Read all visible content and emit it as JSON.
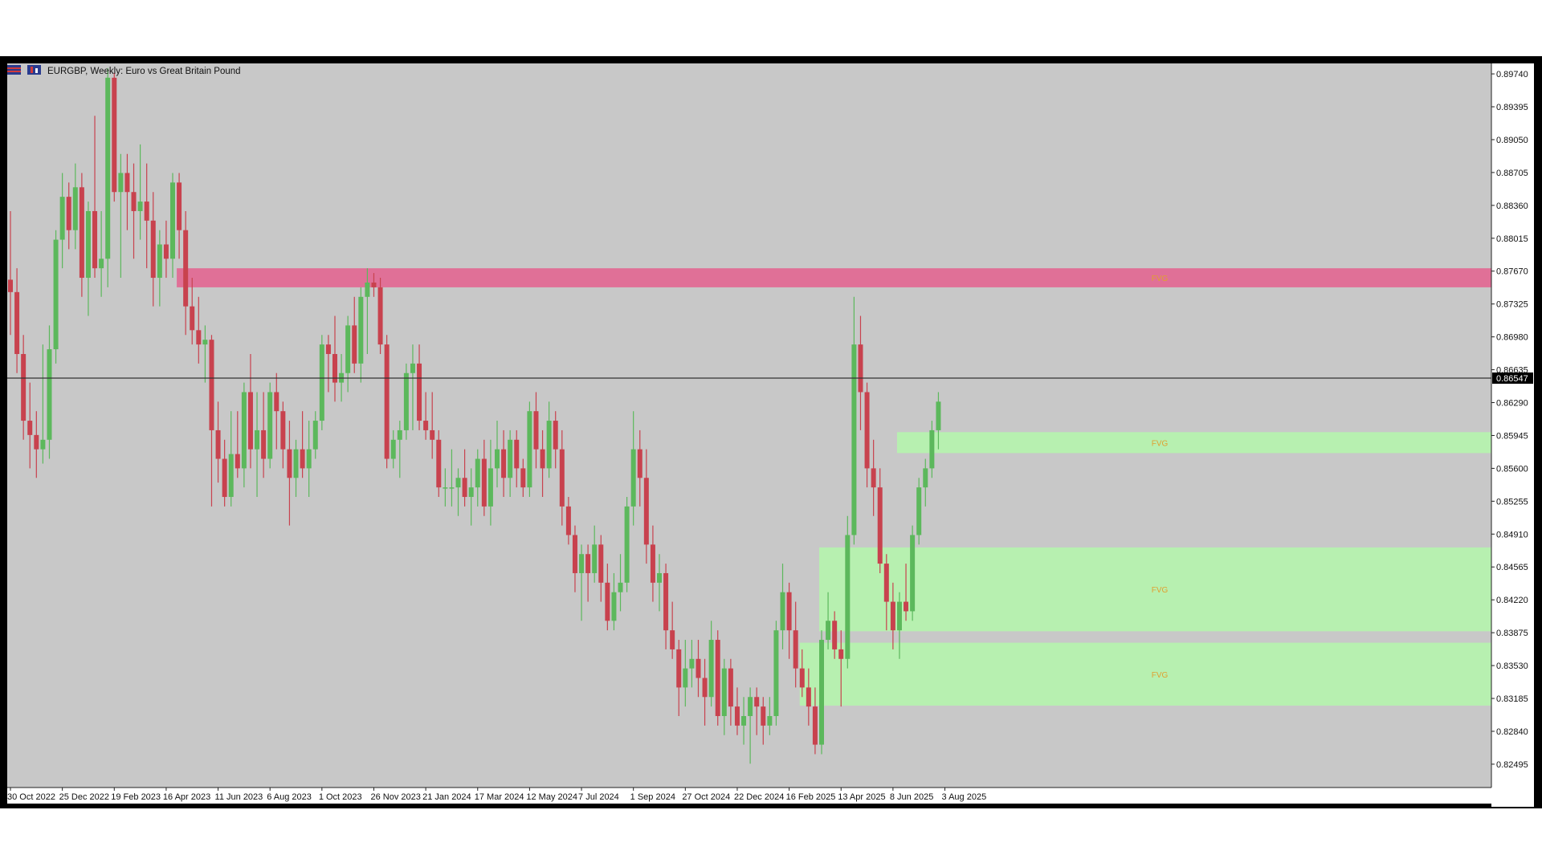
{
  "window": {
    "title": "EURGBP, Weekly:  Euro vs Great Britain Pound"
  },
  "colors": {
    "background": "#c8c8c8",
    "bull": "#5cb85c",
    "bear": "#c8424e",
    "supply_zone": "#e07097",
    "demand_zone": "#b7f0b0",
    "fvg_label": "#e0a030",
    "frame": "#000000"
  },
  "icons": [
    "flag-icon",
    "chart-type-icon"
  ],
  "chart_data": {
    "type": "candlestick",
    "symbol": "EURGBP",
    "timeframe": "Weekly",
    "description": "Euro vs Great Britain Pound",
    "ylim": [
      0.8225,
      0.8985
    ],
    "y_ticks": [
      "0.89740",
      "0.89395",
      "0.89050",
      "0.88705",
      "0.88360",
      "0.88015",
      "0.87670",
      "0.87325",
      "0.86980",
      "0.86635",
      "0.86290",
      "0.85945",
      "0.85600",
      "0.85255",
      "0.84910",
      "0.84565",
      "0.84220",
      "0.83875",
      "0.83530",
      "0.83185",
      "0.82840",
      "0.82495"
    ],
    "x_ticks": [
      "30 Oct 2022",
      "25 Dec 2022",
      "19 Feb 2023",
      "16 Apr 2023",
      "11 Jun 2023",
      "6 Aug 2023",
      "1 Oct 2023",
      "26 Nov 2023",
      "21 Jan 2024",
      "17 Mar 2024",
      "12 May 2024",
      "7 Jul 2024",
      "1 Sep 2024",
      "27 Oct 2024",
      "22 Dec 2024",
      "16 Feb 2025",
      "13 Apr 2025",
      "8 Jun 2025",
      "3 Aug 2025"
    ],
    "current_price": "0.86547",
    "current_price_value": 0.86547,
    "zones": [
      {
        "type": "supply",
        "label": "FVG",
        "top": 0.877,
        "bottom": 0.875,
        "start_index": 26
      },
      {
        "type": "demand",
        "label": "FVG",
        "top": 0.8598,
        "bottom": 0.8576,
        "start_index": 137
      },
      {
        "type": "demand",
        "label": "FVG",
        "top": 0.8477,
        "bottom": 0.8389,
        "start_index": 125
      },
      {
        "type": "demand",
        "label": "FVG",
        "top": 0.8377,
        "bottom": 0.8311,
        "start_index": 122
      }
    ],
    "candles": [
      [
        0.8758,
        0.883,
        0.87,
        0.8745
      ],
      [
        0.8745,
        0.877,
        0.866,
        0.868
      ],
      [
        0.868,
        0.87,
        0.859,
        0.861
      ],
      [
        0.861,
        0.865,
        0.856,
        0.8595
      ],
      [
        0.8595,
        0.862,
        0.855,
        0.858
      ],
      [
        0.858,
        0.869,
        0.8565,
        0.859
      ],
      [
        0.859,
        0.871,
        0.857,
        0.8685
      ],
      [
        0.8685,
        0.881,
        0.867,
        0.88
      ],
      [
        0.88,
        0.887,
        0.877,
        0.8845
      ],
      [
        0.8845,
        0.886,
        0.879,
        0.881
      ],
      [
        0.881,
        0.888,
        0.879,
        0.8855
      ],
      [
        0.8855,
        0.887,
        0.874,
        0.876
      ],
      [
        0.876,
        0.884,
        0.872,
        0.883
      ],
      [
        0.883,
        0.893,
        0.876,
        0.877
      ],
      [
        0.877,
        0.883,
        0.874,
        0.878
      ],
      [
        0.878,
        0.898,
        0.875,
        0.897
      ],
      [
        0.897,
        0.8975,
        0.884,
        0.885
      ],
      [
        0.885,
        0.889,
        0.876,
        0.887
      ],
      [
        0.887,
        0.889,
        0.881,
        0.885
      ],
      [
        0.885,
        0.888,
        0.878,
        0.883
      ],
      [
        0.883,
        0.89,
        0.88,
        0.884
      ],
      [
        0.884,
        0.888,
        0.877,
        0.882
      ],
      [
        0.882,
        0.885,
        0.873,
        0.876
      ],
      [
        0.876,
        0.881,
        0.873,
        0.8795
      ],
      [
        0.8795,
        0.882,
        0.876,
        0.878
      ],
      [
        0.878,
        0.887,
        0.876,
        0.886
      ],
      [
        0.886,
        0.887,
        0.878,
        0.881
      ],
      [
        0.881,
        0.883,
        0.87,
        0.873
      ],
      [
        0.873,
        0.876,
        0.869,
        0.8705
      ],
      [
        0.8705,
        0.874,
        0.867,
        0.869
      ],
      [
        0.869,
        0.871,
        0.865,
        0.8695
      ],
      [
        0.8695,
        0.87,
        0.852,
        0.86
      ],
      [
        0.86,
        0.863,
        0.8545,
        0.857
      ],
      [
        0.857,
        0.859,
        0.852,
        0.853
      ],
      [
        0.853,
        0.862,
        0.852,
        0.8575
      ],
      [
        0.8575,
        0.862,
        0.855,
        0.856
      ],
      [
        0.856,
        0.865,
        0.854,
        0.864
      ],
      [
        0.864,
        0.868,
        0.856,
        0.858
      ],
      [
        0.858,
        0.864,
        0.853,
        0.86
      ],
      [
        0.86,
        0.864,
        0.855,
        0.857
      ],
      [
        0.857,
        0.865,
        0.856,
        0.864
      ],
      [
        0.864,
        0.866,
        0.858,
        0.862
      ],
      [
        0.862,
        0.863,
        0.856,
        0.858
      ],
      [
        0.858,
        0.861,
        0.85,
        0.855
      ],
      [
        0.855,
        0.859,
        0.853,
        0.858
      ],
      [
        0.858,
        0.862,
        0.855,
        0.856
      ],
      [
        0.856,
        0.861,
        0.853,
        0.858
      ],
      [
        0.858,
        0.862,
        0.857,
        0.861
      ],
      [
        0.861,
        0.87,
        0.86,
        0.869
      ],
      [
        0.869,
        0.87,
        0.864,
        0.868
      ],
      [
        0.868,
        0.872,
        0.863,
        0.865
      ],
      [
        0.865,
        0.868,
        0.863,
        0.866
      ],
      [
        0.866,
        0.872,
        0.864,
        0.871
      ],
      [
        0.871,
        0.874,
        0.866,
        0.867
      ],
      [
        0.867,
        0.875,
        0.865,
        0.874
      ],
      [
        0.874,
        0.877,
        0.868,
        0.8755
      ],
      [
        0.8755,
        0.8765,
        0.874,
        0.875
      ],
      [
        0.875,
        0.876,
        0.868,
        0.869
      ],
      [
        0.869,
        0.87,
        0.856,
        0.857
      ],
      [
        0.857,
        0.86,
        0.856,
        0.859
      ],
      [
        0.859,
        0.861,
        0.855,
        0.86
      ],
      [
        0.86,
        0.867,
        0.859,
        0.866
      ],
      [
        0.866,
        0.869,
        0.86,
        0.867
      ],
      [
        0.867,
        0.869,
        0.86,
        0.861
      ],
      [
        0.861,
        0.864,
        0.859,
        0.86
      ],
      [
        0.86,
        0.864,
        0.857,
        0.859
      ],
      [
        0.859,
        0.86,
        0.853,
        0.854
      ],
      [
        0.854,
        0.856,
        0.852,
        0.854
      ],
      [
        0.854,
        0.858,
        0.852,
        0.854
      ],
      [
        0.854,
        0.856,
        0.851,
        0.855
      ],
      [
        0.855,
        0.858,
        0.852,
        0.853
      ],
      [
        0.853,
        0.856,
        0.85,
        0.854
      ],
      [
        0.854,
        0.858,
        0.852,
        0.857
      ],
      [
        0.857,
        0.859,
        0.851,
        0.852
      ],
      [
        0.852,
        0.859,
        0.85,
        0.856
      ],
      [
        0.856,
        0.861,
        0.854,
        0.858
      ],
      [
        0.858,
        0.86,
        0.853,
        0.855
      ],
      [
        0.855,
        0.86,
        0.853,
        0.859
      ],
      [
        0.859,
        0.86,
        0.854,
        0.856
      ],
      [
        0.856,
        0.857,
        0.853,
        0.854
      ],
      [
        0.854,
        0.863,
        0.853,
        0.862
      ],
      [
        0.862,
        0.864,
        0.856,
        0.858
      ],
      [
        0.858,
        0.86,
        0.853,
        0.856
      ],
      [
        0.856,
        0.863,
        0.855,
        0.861
      ],
      [
        0.861,
        0.862,
        0.856,
        0.858
      ],
      [
        0.858,
        0.86,
        0.85,
        0.852
      ],
      [
        0.852,
        0.853,
        0.848,
        0.849
      ],
      [
        0.849,
        0.85,
        0.843,
        0.845
      ],
      [
        0.845,
        0.848,
        0.84,
        0.847
      ],
      [
        0.847,
        0.848,
        0.842,
        0.845
      ],
      [
        0.845,
        0.85,
        0.844,
        0.848
      ],
      [
        0.848,
        0.849,
        0.842,
        0.844
      ],
      [
        0.844,
        0.846,
        0.839,
        0.84
      ],
      [
        0.84,
        0.845,
        0.839,
        0.843
      ],
      [
        0.843,
        0.847,
        0.841,
        0.844
      ],
      [
        0.844,
        0.853,
        0.843,
        0.852
      ],
      [
        0.852,
        0.862,
        0.85,
        0.858
      ],
      [
        0.858,
        0.86,
        0.852,
        0.855
      ],
      [
        0.855,
        0.858,
        0.846,
        0.848
      ],
      [
        0.848,
        0.85,
        0.842,
        0.844
      ],
      [
        0.844,
        0.847,
        0.841,
        0.845
      ],
      [
        0.845,
        0.846,
        0.837,
        0.839
      ],
      [
        0.839,
        0.842,
        0.836,
        0.837
      ],
      [
        0.837,
        0.838,
        0.83,
        0.833
      ],
      [
        0.833,
        0.838,
        0.831,
        0.835
      ],
      [
        0.835,
        0.838,
        0.833,
        0.836
      ],
      [
        0.836,
        0.838,
        0.832,
        0.834
      ],
      [
        0.834,
        0.836,
        0.829,
        0.832
      ],
      [
        0.832,
        0.84,
        0.831,
        0.838
      ],
      [
        0.838,
        0.839,
        0.829,
        0.83
      ],
      [
        0.83,
        0.836,
        0.828,
        0.835
      ],
      [
        0.835,
        0.836,
        0.829,
        0.831
      ],
      [
        0.831,
        0.833,
        0.828,
        0.829
      ],
      [
        0.829,
        0.832,
        0.827,
        0.83
      ],
      [
        0.83,
        0.833,
        0.825,
        0.832
      ],
      [
        0.832,
        0.833,
        0.828,
        0.831
      ],
      [
        0.831,
        0.832,
        0.827,
        0.829
      ],
      [
        0.829,
        0.832,
        0.828,
        0.83
      ],
      [
        0.83,
        0.84,
        0.829,
        0.839
      ],
      [
        0.839,
        0.846,
        0.837,
        0.843
      ],
      [
        0.843,
        0.844,
        0.836,
        0.839
      ],
      [
        0.839,
        0.842,
        0.833,
        0.835
      ],
      [
        0.835,
        0.837,
        0.832,
        0.833
      ],
      [
        0.833,
        0.835,
        0.829,
        0.831
      ],
      [
        0.831,
        0.833,
        0.826,
        0.827
      ],
      [
        0.827,
        0.839,
        0.826,
        0.838
      ],
      [
        0.838,
        0.843,
        0.837,
        0.84
      ],
      [
        0.84,
        0.841,
        0.836,
        0.837
      ],
      [
        0.837,
        0.839,
        0.831,
        0.836
      ],
      [
        0.836,
        0.851,
        0.835,
        0.849
      ],
      [
        0.849,
        0.874,
        0.848,
        0.869
      ],
      [
        0.869,
        0.872,
        0.86,
        0.864
      ],
      [
        0.864,
        0.865,
        0.854,
        0.856
      ],
      [
        0.856,
        0.859,
        0.851,
        0.854
      ],
      [
        0.854,
        0.856,
        0.845,
        0.846
      ],
      [
        0.846,
        0.847,
        0.839,
        0.842
      ],
      [
        0.842,
        0.844,
        0.837,
        0.839
      ],
      [
        0.839,
        0.843,
        0.836,
        0.842
      ],
      [
        0.842,
        0.846,
        0.84,
        0.841
      ],
      [
        0.841,
        0.85,
        0.84,
        0.849
      ],
      [
        0.849,
        0.855,
        0.848,
        0.854
      ],
      [
        0.854,
        0.857,
        0.852,
        0.856
      ],
      [
        0.856,
        0.861,
        0.855,
        0.86
      ],
      [
        0.86,
        0.864,
        0.858,
        0.863
      ]
    ]
  }
}
